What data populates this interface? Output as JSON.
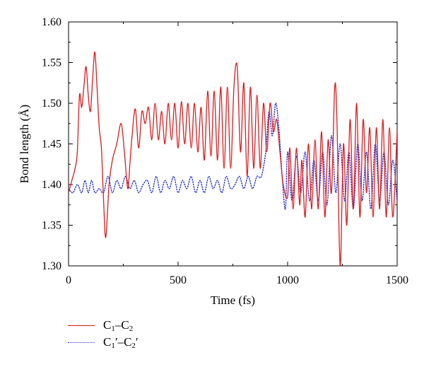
{
  "chart_data": {
    "type": "line",
    "xlabel": "Time (fs)",
    "ylabel": "Bond length (Å)",
    "xlim": [
      0,
      1500
    ],
    "ylim": [
      1.3,
      1.6
    ],
    "xticks": [
      "0",
      "500",
      "1000",
      "1500"
    ],
    "yticks": [
      "1.30",
      "1.35",
      "1.40",
      "1.45",
      "1.50",
      "1.55",
      "1.60"
    ],
    "legend_position": "bottom-left",
    "series": [
      {
        "name": "C1–C2",
        "color": "#e0191b",
        "style": "solid",
        "x": [
          0,
          15,
          30,
          40,
          50,
          60,
          70,
          80,
          90,
          100,
          110,
          120,
          130,
          140,
          150,
          160,
          170,
          185,
          200,
          220,
          240,
          255,
          270,
          280,
          290,
          305,
          320,
          335,
          350,
          365,
          380,
          395,
          410,
          425,
          440,
          455,
          470,
          485,
          500,
          515,
          530,
          545,
          560,
          575,
          590,
          605,
          620,
          635,
          650,
          665,
          680,
          695,
          710,
          725,
          740,
          755,
          770,
          785,
          800,
          815,
          830,
          845,
          860,
          875,
          890,
          905,
          920,
          935,
          950,
          965,
          980,
          1000,
          1010,
          1025,
          1040,
          1055,
          1065,
          1080,
          1095,
          1110,
          1125,
          1140,
          1155,
          1170,
          1185,
          1200,
          1215,
          1225,
          1240,
          1255,
          1270,
          1285,
          1300,
          1315,
          1330,
          1345,
          1360,
          1375,
          1390,
          1405,
          1420,
          1435,
          1450,
          1465,
          1480,
          1500
        ],
        "y": [
          1.39,
          1.405,
          1.42,
          1.44,
          1.51,
          1.495,
          1.52,
          1.545,
          1.51,
          1.49,
          1.53,
          1.563,
          1.52,
          1.47,
          1.445,
          1.38,
          1.335,
          1.4,
          1.43,
          1.45,
          1.475,
          1.44,
          1.395,
          1.425,
          1.46,
          1.493,
          1.445,
          1.49,
          1.475,
          1.495,
          1.455,
          1.5,
          1.455,
          1.49,
          1.45,
          1.5,
          1.455,
          1.5,
          1.445,
          1.502,
          1.45,
          1.5,
          1.445,
          1.5,
          1.44,
          1.495,
          1.43,
          1.515,
          1.435,
          1.515,
          1.43,
          1.52,
          1.42,
          1.52,
          1.42,
          1.52,
          1.545,
          1.44,
          1.525,
          1.41,
          1.52,
          1.42,
          1.51,
          1.42,
          1.5,
          1.44,
          1.5,
          1.465,
          1.48,
          1.44,
          1.4,
          1.385,
          1.445,
          1.37,
          1.445,
          1.375,
          1.43,
          1.36,
          1.45,
          1.37,
          1.455,
          1.37,
          1.465,
          1.36,
          1.455,
          1.39,
          1.52,
          1.48,
          1.3,
          1.45,
          1.35,
          1.48,
          1.37,
          1.5,
          1.36,
          1.48,
          1.39,
          1.47,
          1.36,
          1.47,
          1.37,
          1.48,
          1.36,
          1.47,
          1.36,
          1.465
        ]
      },
      {
        "name": "C1′–C2′",
        "color": "#1f2fd1",
        "style": "dotted",
        "x": [
          0,
          20,
          40,
          60,
          75,
          90,
          105,
          120,
          140,
          160,
          180,
          200,
          220,
          240,
          260,
          280,
          300,
          320,
          340,
          360,
          380,
          400,
          420,
          440,
          460,
          480,
          500,
          520,
          540,
          560,
          580,
          600,
          620,
          640,
          660,
          680,
          700,
          720,
          740,
          760,
          780,
          800,
          820,
          840,
          860,
          880,
          900,
          915,
          930,
          945,
          960,
          975,
          990,
          1000,
          1020,
          1040,
          1060,
          1080,
          1100,
          1120,
          1140,
          1160,
          1180,
          1200,
          1220,
          1240,
          1260,
          1280,
          1300,
          1320,
          1340,
          1360,
          1380,
          1400,
          1420,
          1440,
          1460,
          1480,
          1500
        ],
        "y": [
          1.395,
          1.39,
          1.4,
          1.39,
          1.405,
          1.39,
          1.405,
          1.39,
          1.395,
          1.39,
          1.41,
          1.39,
          1.405,
          1.395,
          1.41,
          1.395,
          1.405,
          1.39,
          1.4,
          1.405,
          1.39,
          1.41,
          1.39,
          1.405,
          1.395,
          1.41,
          1.39,
          1.405,
          1.395,
          1.41,
          1.39,
          1.405,
          1.39,
          1.41,
          1.395,
          1.405,
          1.39,
          1.41,
          1.395,
          1.4,
          1.41,
          1.395,
          1.41,
          1.395,
          1.41,
          1.41,
          1.44,
          1.49,
          1.46,
          1.5,
          1.47,
          1.41,
          1.37,
          1.44,
          1.38,
          1.435,
          1.39,
          1.44,
          1.38,
          1.43,
          1.38,
          1.44,
          1.375,
          1.46,
          1.39,
          1.45,
          1.38,
          1.44,
          1.37,
          1.45,
          1.38,
          1.44,
          1.37,
          1.45,
          1.38,
          1.44,
          1.375,
          1.43,
          1.38
        ]
      }
    ]
  },
  "legend": {
    "series1": {
      "base1": "C",
      "sub1": "1",
      "dash": "–",
      "base2": "C",
      "sub2": "2"
    },
    "series2": {
      "base1": "C",
      "sub1": "1",
      "prime1": "′",
      "dash": "–",
      "base2": "C",
      "sub2": "2",
      "prime2": "′"
    }
  }
}
